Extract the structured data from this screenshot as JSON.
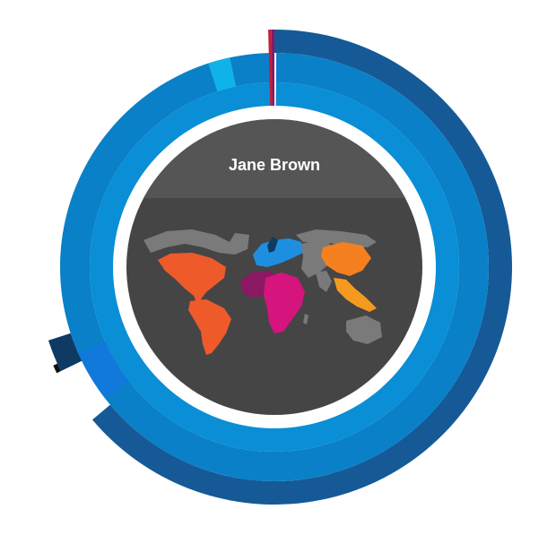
{
  "person": {
    "name": "Jane Brown"
  },
  "colors": {
    "background": "#ffffff",
    "ring_outer": "#155a96",
    "ring_mid": "#0a80c8",
    "ring_inner": "#0a8ed6",
    "ring_core": "#0898da",
    "disc": "#454545",
    "header_band": "#555555",
    "land_default": "#7a7a7a",
    "land_americas": "#ef5a2b",
    "land_africa": "#d6147d",
    "land_north_africa": "#8a1862",
    "land_europe": "#1e8fe0",
    "land_east_asia": "#f5801f",
    "land_southeast_asia": "#f59a1e",
    "accent_cyan": "#10b2ea",
    "accent_dark_navy": "#0f3a63",
    "accent_bright_blue": "#1178dc",
    "accent_red": "#c01f3a",
    "accent_magenta": "#8a1862"
  },
  "icons": [
    "world-map-graphic"
  ]
}
